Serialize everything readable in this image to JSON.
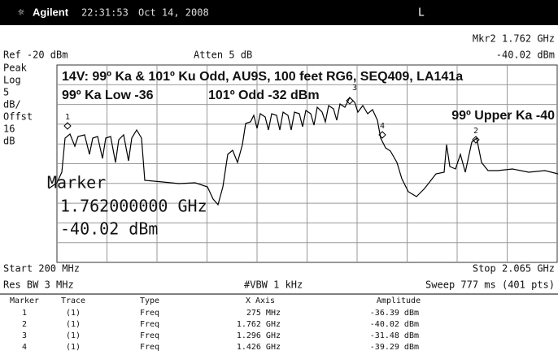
{
  "header": {
    "brand": "Agilent",
    "time": "22:31:53",
    "date": "Oct 14, 2008",
    "mode": "L"
  },
  "status": {
    "ref": "Ref -20 dBm",
    "atten": "Atten 5 dB",
    "marker_freq": "Mkr2  1.762 GHz",
    "marker_amp": "-40.02 dBm"
  },
  "side_labels": [
    "Peak",
    "Log",
    "5",
    "dB/",
    "Offst",
    "16",
    "dB"
  ],
  "annotations": {
    "title": "14V: 99º Ka & 101º Ku Odd, AU9S, 100 feet RG6, SEQ409, LA141a",
    "ka_low": "99º Ka Low -36",
    "odd": "101º Odd -32 dBm",
    "upper": "99º Upper Ka -40"
  },
  "marker_ids": [
    "1",
    "2",
    "3",
    "4"
  ],
  "marker_readout": [
    "Marker",
    "1.762000000 GHz",
    "-40.02 dBm"
  ],
  "footer": {
    "start": "Start 200 MHz",
    "stop": "Stop 2.065 GHz",
    "rbw": "Res BW 3 MHz",
    "vbw": "#VBW 1 kHz",
    "sweep": "Sweep 777 ms (401 pts)"
  },
  "table": {
    "columns": [
      "Marker",
      "Trace",
      "Type",
      "X Axis",
      "Amplitude"
    ],
    "rows": [
      [
        "1",
        "(1)",
        "Freq",
        "275 MHz",
        "-36.39 dBm"
      ],
      [
        "2",
        "(1)",
        "Freq",
        "1.762 GHz",
        "-40.02 dBm"
      ],
      [
        "3",
        "(1)",
        "Freq",
        "1.296 GHz",
        "-31.48 dBm"
      ],
      [
        "4",
        "(1)",
        "Freq",
        "1.426 GHz",
        "-39.29 dBm"
      ]
    ]
  }
}
